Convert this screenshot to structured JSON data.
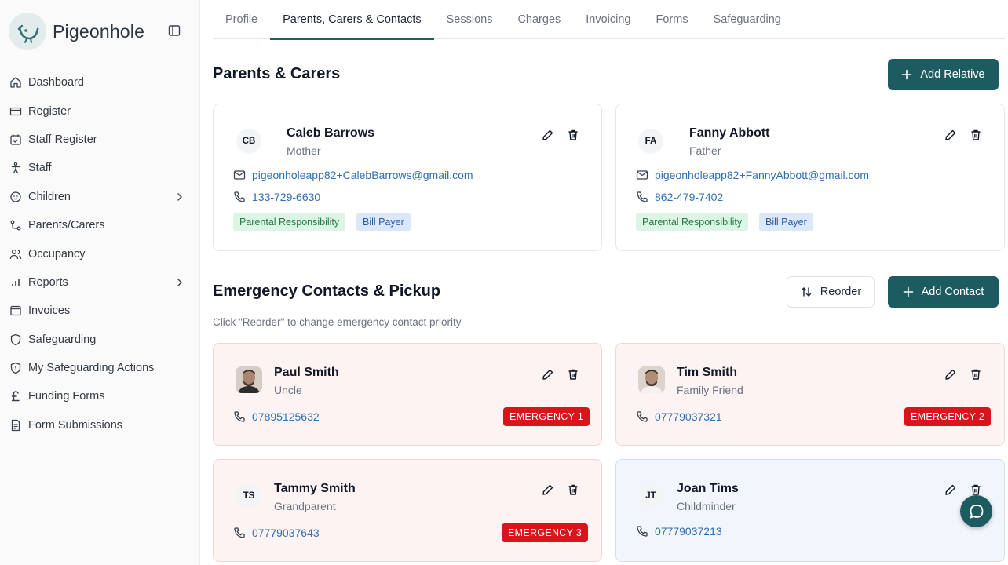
{
  "brand": {
    "name": "Pigeonhole",
    "accent": "#1c5c60"
  },
  "sidebar": {
    "items": [
      {
        "label": "Dashboard",
        "icon": "home-icon"
      },
      {
        "label": "Register",
        "icon": "card-icon"
      },
      {
        "label": "Staff Register",
        "icon": "calendar-check-icon"
      },
      {
        "label": "Staff",
        "icon": "person-icon"
      },
      {
        "label": "Children",
        "icon": "baby-icon",
        "has_submenu": true
      },
      {
        "label": "Parents/Carers",
        "icon": "route-icon"
      },
      {
        "label": "Occupancy",
        "icon": "users-icon"
      },
      {
        "label": "Reports",
        "icon": "bar-chart-icon",
        "has_submenu": true
      },
      {
        "label": "Invoices",
        "icon": "invoice-icon"
      },
      {
        "label": "Safeguarding",
        "icon": "shield-icon"
      },
      {
        "label": "My Safeguarding Actions",
        "icon": "shield-alert-icon"
      },
      {
        "label": "Funding Forms",
        "icon": "pound-icon"
      },
      {
        "label": "Form Submissions",
        "icon": "document-icon"
      }
    ]
  },
  "tabs": [
    {
      "label": "Profile"
    },
    {
      "label": "Parents, Carers & Contacts",
      "active": true
    },
    {
      "label": "Sessions"
    },
    {
      "label": "Charges"
    },
    {
      "label": "Invoicing"
    },
    {
      "label": "Forms"
    },
    {
      "label": "Safeguarding"
    }
  ],
  "parents_section": {
    "title": "Parents & Carers",
    "add_button": "Add Relative",
    "cards": [
      {
        "initials": "CB",
        "name": "Caleb Barrows",
        "relation": "Mother",
        "email": "pigeonholeapp82+CalebBarrows@gmail.com",
        "phone": "133-729-6630",
        "tags": [
          "Parental Responsibility",
          "Bill Payer"
        ]
      },
      {
        "initials": "FA",
        "name": "Fanny Abbott",
        "relation": "Father",
        "email": "pigeonholeapp82+FannyAbbott@gmail.com",
        "phone": "862-479-7402",
        "tags": [
          "Parental Responsibility",
          "Bill Payer"
        ]
      }
    ]
  },
  "emergency_section": {
    "title": "Emergency Contacts & Pickup",
    "hint": "Click \"Reorder\" to change emergency contact priority",
    "reorder_button": "Reorder",
    "add_button": "Add Contact",
    "cards": [
      {
        "name": "Paul Smith",
        "relation": "Uncle",
        "phone": "07895125632",
        "badge": "EMERGENCY 1",
        "avatar": "photo"
      },
      {
        "name": "Tim Smith",
        "relation": "Family Friend",
        "phone": "07779037321",
        "badge": "EMERGENCY 2",
        "avatar": "photo"
      },
      {
        "initials": "TS",
        "name": "Tammy Smith",
        "relation": "Grandparent",
        "phone": "07779037643",
        "badge": "EMERGENCY 3"
      },
      {
        "initials": "JT",
        "name": "Joan Tims",
        "relation": "Childminder",
        "phone": "07779037213"
      }
    ]
  }
}
